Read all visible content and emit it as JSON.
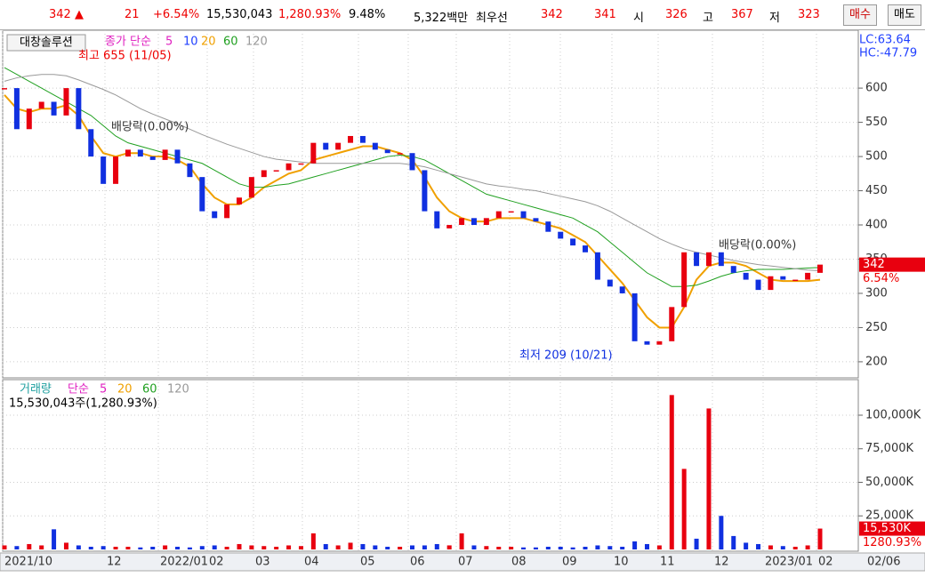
{
  "header": {
    "items": [
      "342 ▲",
      "21",
      "+6.54%",
      "15,530,043",
      "1,280.93%",
      "9.48%",
      "5,322백만",
      "최우선",
      "342",
      "341",
      "시",
      "326",
      "고",
      "367",
      "저",
      "323"
    ],
    "buttons": [
      "매수",
      "매도"
    ]
  },
  "chart_data": [
    {
      "type": "candlestick",
      "name": "대창솔루션",
      "legend_title": "종가 단순",
      "legend_extra": [
        {
          "name": "5",
          "color": "#e020c0"
        },
        {
          "name": "10",
          "color": "#2040ff"
        }
      ],
      "close": [
        600,
        540,
        570,
        580,
        560,
        600,
        540,
        500,
        460,
        500,
        510,
        500,
        495,
        510,
        490,
        470,
        420,
        410,
        430,
        440,
        470,
        480,
        480,
        490,
        490,
        520,
        510,
        520,
        530,
        520,
        510,
        505,
        505,
        480,
        420,
        395,
        400,
        410,
        400,
        410,
        420,
        420,
        410,
        405,
        390,
        380,
        370,
        360,
        320,
        310,
        300,
        230,
        225,
        230,
        280,
        360,
        340,
        360,
        340,
        330,
        320,
        305,
        325,
        320,
        320,
        330,
        342
      ],
      "series": [
        {
          "name": "20",
          "color": "#f0a000",
          "values": [
            590,
            570,
            565,
            570,
            570,
            575,
            560,
            530,
            505,
            500,
            505,
            505,
            500,
            500,
            495,
            485,
            460,
            440,
            430,
            430,
            440,
            455,
            465,
            475,
            480,
            495,
            500,
            505,
            510,
            515,
            515,
            510,
            505,
            495,
            470,
            440,
            420,
            410,
            405,
            405,
            410,
            410,
            410,
            405,
            400,
            395,
            385,
            375,
            355,
            335,
            315,
            290,
            265,
            250,
            250,
            280,
            320,
            340,
            345,
            345,
            340,
            330,
            320,
            318,
            318,
            318,
            320
          ]
        },
        {
          "name": "60",
          "color": "#20a020",
          "values": [
            630,
            620,
            610,
            600,
            590,
            580,
            570,
            560,
            545,
            530,
            520,
            515,
            510,
            505,
            500,
            495,
            490,
            480,
            470,
            460,
            455,
            455,
            458,
            460,
            465,
            470,
            475,
            480,
            485,
            490,
            495,
            500,
            502,
            500,
            495,
            485,
            475,
            465,
            455,
            445,
            440,
            435,
            430,
            425,
            420,
            415,
            410,
            400,
            390,
            375,
            360,
            345,
            330,
            320,
            310,
            310,
            312,
            318,
            325,
            330,
            333,
            335,
            335,
            335,
            336,
            337,
            338
          ]
        },
        {
          "name": "120",
          "color": "#999999",
          "values": [
            610,
            615,
            618,
            620,
            620,
            618,
            612,
            605,
            598,
            590,
            580,
            570,
            562,
            555,
            548,
            540,
            532,
            525,
            518,
            512,
            506,
            500,
            496,
            494,
            492,
            490,
            490,
            490,
            490,
            490,
            490,
            490,
            490,
            488,
            485,
            480,
            475,
            470,
            465,
            460,
            457,
            455,
            452,
            450,
            446,
            442,
            438,
            434,
            428,
            420,
            410,
            400,
            390,
            380,
            372,
            365,
            360,
            356,
            352,
            348,
            345,
            342,
            340,
            338,
            336,
            334,
            333
          ]
        }
      ],
      "ylim": [
        183,
        682
      ],
      "yticks": [
        200,
        250,
        300,
        350,
        400,
        450,
        500,
        550,
        600
      ],
      "corner_labels": [
        "LC:63.64",
        "HC:-47.79"
      ],
      "last_price": {
        "value": 342,
        "change": "6.54%"
      },
      "annotations": [
        "최고 655 (11/05)",
        "최저 209 (10/21)",
        "배당락(0.00%)",
        "배당락(0.00%)"
      ],
      "grid": true
    },
    {
      "type": "bar",
      "name": "거래량",
      "legend_title": "단순",
      "legend": [
        {
          "name": "5",
          "color": "#e020c0"
        },
        {
          "name": "20",
          "color": "#f0a000"
        },
        {
          "name": "60",
          "color": "#20a020"
        },
        {
          "name": "120",
          "color": "#999999"
        }
      ],
      "summary": "15,530,043주(1,280.93%)",
      "values": [
        3000,
        2500,
        4000,
        3000,
        15000,
        5000,
        3000,
        2000,
        2500,
        2000,
        2000,
        1500,
        2000,
        3000,
        2000,
        1500,
        2500,
        3000,
        2000,
        4000,
        3000,
        2500,
        2000,
        3000,
        2500,
        12000,
        4000,
        3000,
        5000,
        4000,
        3000,
        2000,
        2000,
        3000,
        3000,
        4000,
        3000,
        12000,
        3000,
        2500,
        2000,
        2000,
        1500,
        1500,
        2000,
        2000,
        1500,
        2000,
        3000,
        2500,
        2000,
        6000,
        4000,
        3000,
        115000,
        60000,
        8000,
        105000,
        25000,
        10000,
        5000,
        4000,
        3000,
        2500,
        2000,
        3000,
        15530
      ],
      "ylim": [
        0,
        124500
      ],
      "yticks": [
        {
          "value": 25000,
          "label": "25,000K"
        },
        {
          "value": 50000,
          "label": "50,000K"
        },
        {
          "value": 75000,
          "label": "75,000K"
        },
        {
          "value": 100000,
          "label": "100,000K"
        }
      ],
      "last_labels": [
        "15,530K",
        "1280.93%"
      ],
      "grid": true
    }
  ],
  "x_labels": [
    "2021/10",
    "12",
    "2022/01",
    "02",
    "03",
    "04",
    "05",
    "06",
    "07",
    "08",
    "09",
    "10",
    "11",
    "12",
    "2023/01",
    "02",
    "02/06"
  ]
}
